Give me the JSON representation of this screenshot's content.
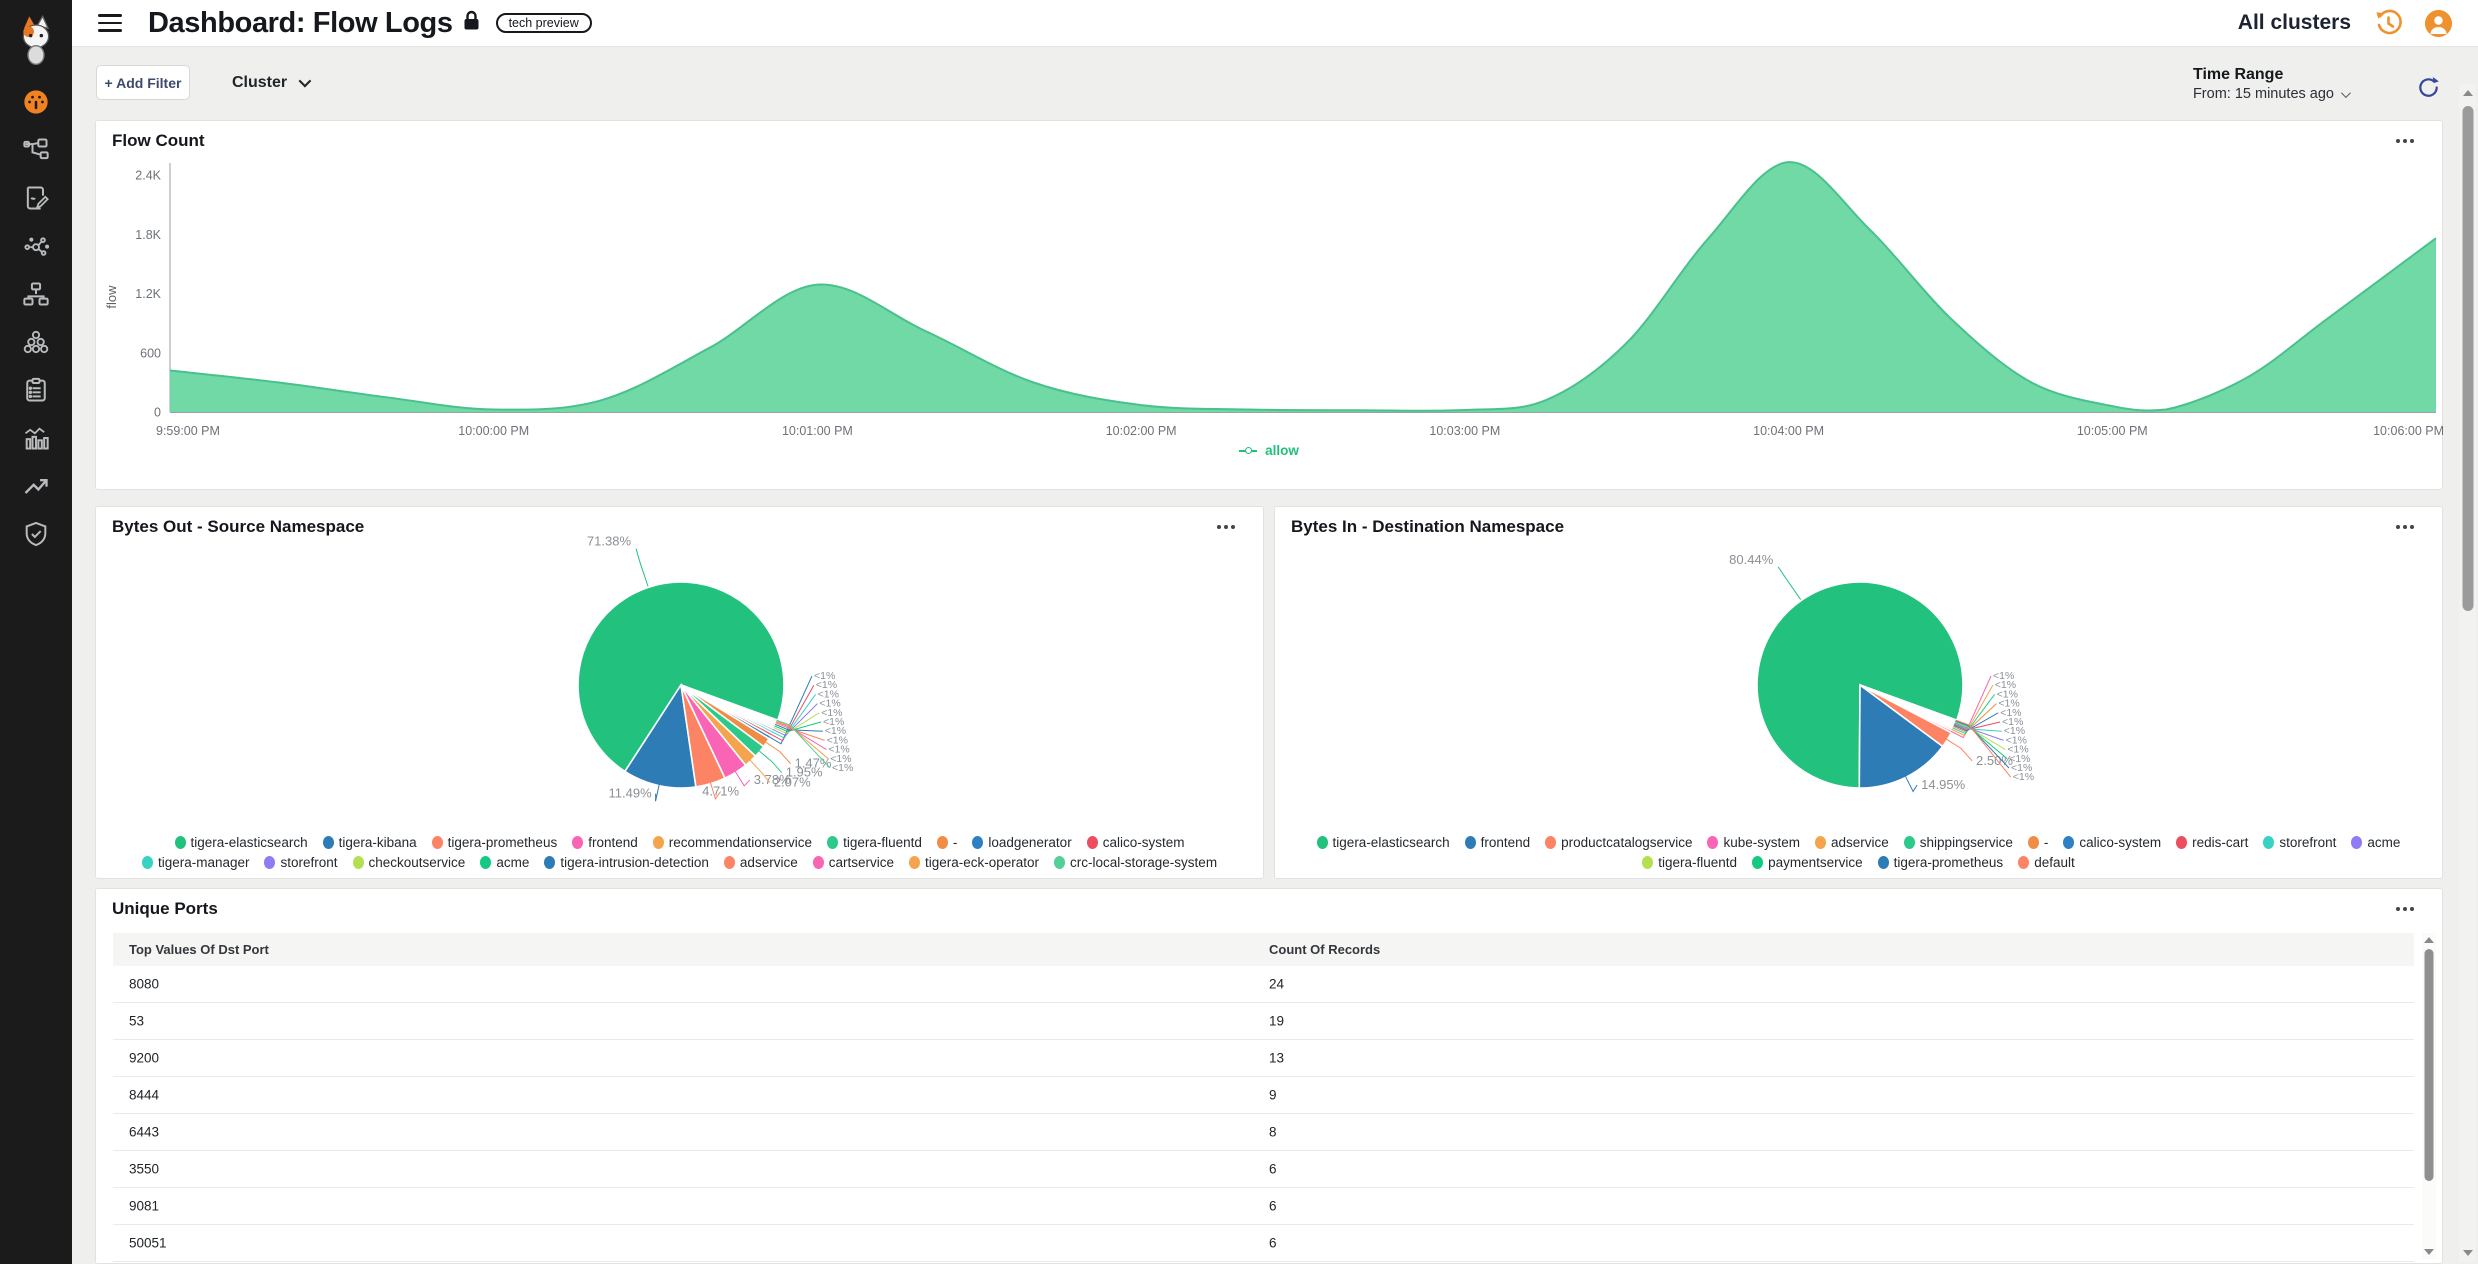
{
  "header": {
    "title": "Dashboard: Flow Logs",
    "badge": "tech preview",
    "all_clusters": "All clusters"
  },
  "sidebar": {
    "icons": [
      "calico-cat-logo",
      "dashboard-icon",
      "service-graph-icon",
      "policies-icon",
      "endpoints-icon",
      "network-sets-icon",
      "managed-clusters-icon",
      "compliance-icon",
      "activity-icon",
      "trends-icon",
      "threat-defense-icon"
    ],
    "active_color": "#f08221"
  },
  "filters": {
    "add_filter_label": "+ Add Filter",
    "cluster_label": "Cluster"
  },
  "time_range": {
    "label": "Time Range",
    "value": "From: 15 minutes ago"
  },
  "chart_data": [
    {
      "type": "area",
      "title": "Flow Count",
      "ylabel": "flow",
      "ylim": [
        0,
        2400
      ],
      "x_range": [
        0,
        420
      ],
      "yticks": [
        {
          "v": 0,
          "label": "0"
        },
        {
          "v": 600,
          "label": "600"
        },
        {
          "v": 1200,
          "label": "1.2K"
        },
        {
          "v": 1800,
          "label": "1.8K"
        },
        {
          "v": 2400,
          "label": "2.4K"
        }
      ],
      "xticks": [
        {
          "v": 0,
          "label": "9:59:00 PM"
        },
        {
          "v": 60,
          "label": "10:00:00 PM"
        },
        {
          "v": 120,
          "label": "10:01:00 PM"
        },
        {
          "v": 180,
          "label": "10:02:00 PM"
        },
        {
          "v": 240,
          "label": "10:03:00 PM"
        },
        {
          "v": 300,
          "label": "10:04:00 PM"
        },
        {
          "v": 360,
          "label": "10:05:00 PM"
        },
        {
          "v": 420,
          "label": "10:06:00 PM"
        }
      ],
      "legend": [
        "allow"
      ],
      "legend_position": "bottom-center",
      "series": [
        {
          "name": "allow",
          "fill": "#70d9a5",
          "stroke": "#49c18c",
          "points": [
            [
              0,
              420
            ],
            [
              20,
              300
            ],
            [
              40,
              150
            ],
            [
              60,
              25
            ],
            [
              80,
              120
            ],
            [
              100,
              650
            ],
            [
              120,
              1290
            ],
            [
              140,
              820
            ],
            [
              160,
              300
            ],
            [
              180,
              70
            ],
            [
              200,
              25
            ],
            [
              220,
              18
            ],
            [
              240,
              20
            ],
            [
              255,
              120
            ],
            [
              270,
              700
            ],
            [
              285,
              1750
            ],
            [
              300,
              2530
            ],
            [
              315,
              1850
            ],
            [
              330,
              950
            ],
            [
              345,
              300
            ],
            [
              360,
              60
            ],
            [
              370,
              25
            ],
            [
              385,
              350
            ],
            [
              400,
              950
            ],
            [
              420,
              1760
            ]
          ]
        }
      ]
    },
    {
      "type": "pie",
      "title": "Bytes Out - Source Namespace",
      "slices": [
        {
          "label": "tigera-elasticsearch",
          "pct": 71.38,
          "display": "71.38%",
          "color": "#22c17d"
        },
        {
          "label": "tigera-kibana",
          "pct": 11.49,
          "display": "11.49%",
          "color": "#2d7cb5"
        },
        {
          "label": "tigera-prometheus",
          "pct": 4.71,
          "display": "4.71%",
          "color": "#fc8464"
        },
        {
          "label": "frontend",
          "pct": 3.78,
          "display": "3.78%",
          "color": "#f964b4"
        },
        {
          "label": "recommendationservice",
          "pct": 2.07,
          "display": "2.07%",
          "color": "#f4a44c"
        },
        {
          "label": "tigera-fluentd",
          "pct": 1.95,
          "display": "1.95%",
          "color": "#2cc98b"
        },
        {
          "label": "-",
          "pct": 1.47,
          "display": "1.47%",
          "color": "#f08d45"
        },
        {
          "label": "loadgenerator",
          "pct": 0.5,
          "display": "<1%",
          "color": "#2f80c3"
        },
        {
          "label": "calico-system",
          "pct": 0.45,
          "display": "<1%",
          "color": "#eb4e5f"
        },
        {
          "label": "tigera-manager",
          "pct": 0.4,
          "display": "<1%",
          "color": "#36d3c3"
        },
        {
          "label": "storefront",
          "pct": 0.35,
          "display": "<1%",
          "color": "#8d7cf3"
        },
        {
          "label": "checkoutservice",
          "pct": 0.3,
          "display": "<1%",
          "color": "#b4e04f"
        },
        {
          "label": "acme",
          "pct": 0.28,
          "display": "<1%",
          "color": "#14c981"
        },
        {
          "label": "tigera-intrusion-detection",
          "pct": 0.25,
          "display": "<1%",
          "color": "#2d7cb5"
        },
        {
          "label": "adservice",
          "pct": 0.22,
          "display": "<1%",
          "color": "#fc8464"
        },
        {
          "label": "cartservice",
          "pct": 0.15,
          "display": "<1%",
          "color": "#f964b4"
        },
        {
          "label": "tigera-eck-operator",
          "pct": 0.13,
          "display": "<1%",
          "color": "#f4a44c"
        },
        {
          "label": "crc-local-storage-system",
          "pct": 0.12,
          "display": "<1%",
          "color": "#54cf97"
        }
      ]
    },
    {
      "type": "pie",
      "title": "Bytes In - Destination Namespace",
      "slices": [
        {
          "label": "tigera-elasticsearch",
          "pct": 80.44,
          "display": "80.44%",
          "color": "#22c17d"
        },
        {
          "label": "frontend",
          "pct": 14.95,
          "display": "14.95%",
          "color": "#2d7cb5"
        },
        {
          "label": "productcatalogservice",
          "pct": 2.5,
          "display": "2.50%",
          "color": "#fc8464"
        },
        {
          "label": "kube-system",
          "pct": 0.35,
          "display": "<1%",
          "color": "#f964b4"
        },
        {
          "label": "adservice",
          "pct": 0.3,
          "display": "<1%",
          "color": "#f4a44c"
        },
        {
          "label": "shippingservice",
          "pct": 0.25,
          "display": "<1%",
          "color": "#2cc98b"
        },
        {
          "label": "-",
          "pct": 0.2,
          "display": "<1%",
          "color": "#f08d45"
        },
        {
          "label": "calico-system",
          "pct": 0.18,
          "display": "<1%",
          "color": "#2f80c3"
        },
        {
          "label": "redis-cart",
          "pct": 0.15,
          "display": "<1%",
          "color": "#eb4e5f"
        },
        {
          "label": "storefront",
          "pct": 0.14,
          "display": "<1%",
          "color": "#36d3c3"
        },
        {
          "label": "acme",
          "pct": 0.13,
          "display": "<1%",
          "color": "#8d7cf3"
        },
        {
          "label": "tigera-fluentd",
          "pct": 0.12,
          "display": "<1%",
          "color": "#b4e04f"
        },
        {
          "label": "paymentservice",
          "pct": 0.11,
          "display": "<1%",
          "color": "#14c981"
        },
        {
          "label": "tigera-prometheus",
          "pct": 0.1,
          "display": "<1%",
          "color": "#2d7cb5"
        },
        {
          "label": "default",
          "pct": 0.08,
          "display": "<1%",
          "color": "#fc8464"
        }
      ]
    },
    {
      "type": "table",
      "title": "Unique Ports",
      "columns": [
        "Top Values Of Dst Port",
        "Count Of Records"
      ],
      "rows": [
        [
          "8080",
          "24"
        ],
        [
          "53",
          "19"
        ],
        [
          "9200",
          "13"
        ],
        [
          "8444",
          "9"
        ],
        [
          "6443",
          "8"
        ],
        [
          "3550",
          "6"
        ],
        [
          "9081",
          "6"
        ],
        [
          "50051",
          "6"
        ]
      ]
    }
  ]
}
